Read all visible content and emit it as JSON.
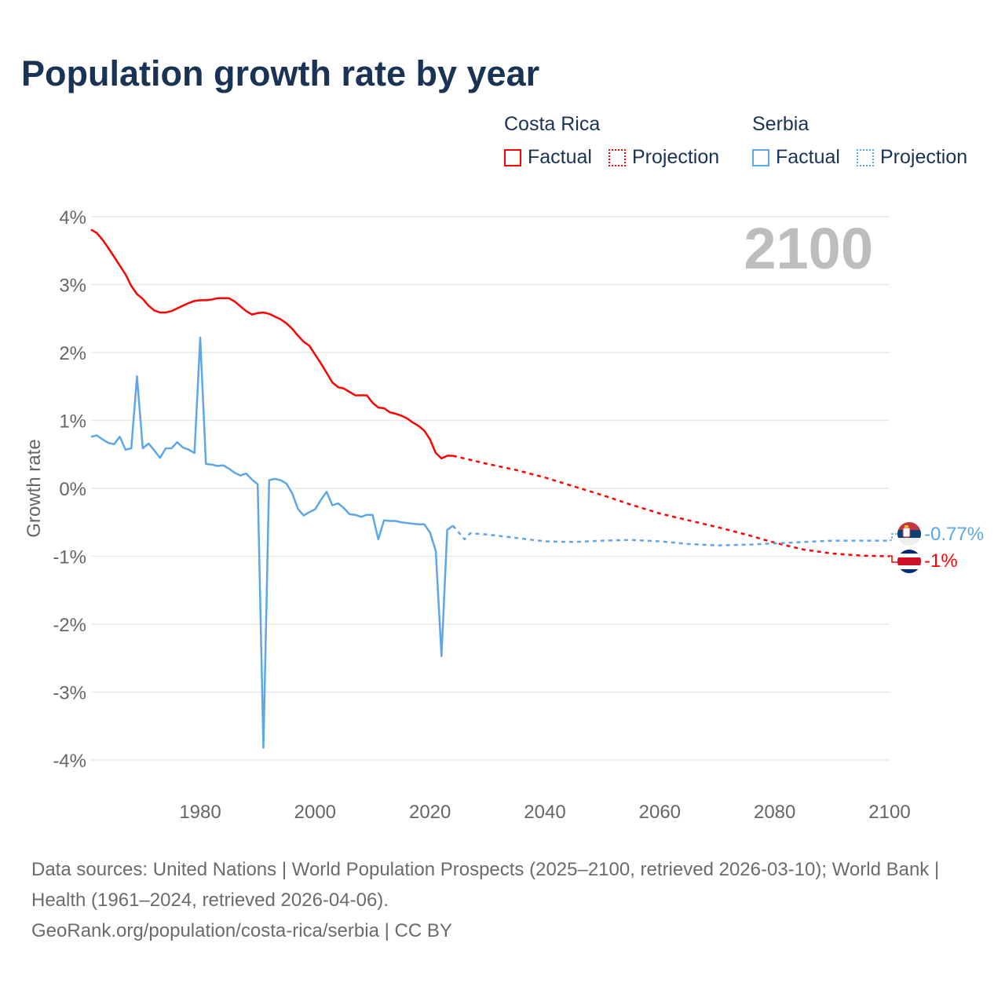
{
  "title": "Population growth rate by year",
  "legend": {
    "countries": [
      {
        "name": "Costa Rica",
        "color": "#ff0000",
        "factual_label": "Factual",
        "projection_label": "Projection"
      },
      {
        "name": "Serbia",
        "color": "#5ea6ea",
        "factual_label": "Factual",
        "projection_label": "Projection"
      }
    ]
  },
  "year_label": "2100",
  "end_labels": {
    "serbia": "-0.77%",
    "costa_rica": "-1%"
  },
  "footer": {
    "sources": "Data sources: United Nations | World Population Prospects (2025–2100, retrieved 2026-03-10); World Bank | Health (1961–2024, retrieved 2026-04-06).",
    "credit": "GeoRank.org/population/costa-rica/serbia | CC BY"
  },
  "chart_data": {
    "type": "line",
    "title": "Population growth rate by year",
    "xlabel": "",
    "ylabel": "Growth rate",
    "xlim": [
      1961,
      2100
    ],
    "ylim": [
      -4,
      4
    ],
    "grid": true,
    "legend_position": "top-right",
    "x_ticks": [
      1980,
      2000,
      2020,
      2040,
      2060,
      2080,
      2100
    ],
    "y_ticks": [
      {
        "value": 4,
        "label": "4%"
      },
      {
        "value": 3,
        "label": "3%"
      },
      {
        "value": 2,
        "label": "2%"
      },
      {
        "value": 1,
        "label": "1%"
      },
      {
        "value": 0,
        "label": "0%"
      },
      {
        "value": -1,
        "label": "-1%"
      },
      {
        "value": -2,
        "label": "-2%"
      },
      {
        "value": -3,
        "label": "-3%"
      },
      {
        "value": -4,
        "label": "-4%"
      }
    ],
    "series": [
      {
        "name": "Costa Rica",
        "kind": "Factual",
        "color": "#ff0000",
        "dashed": false,
        "start_year": 1961,
        "values": [
          3.81,
          3.76,
          3.66,
          3.54,
          3.41,
          3.28,
          3.15,
          2.98,
          2.86,
          2.79,
          2.69,
          2.62,
          2.59,
          2.59,
          2.61,
          2.65,
          2.69,
          2.73,
          2.76,
          2.77,
          2.77,
          2.78,
          2.8,
          2.8,
          2.8,
          2.75,
          2.68,
          2.61,
          2.56,
          2.58,
          2.59,
          2.57,
          2.53,
          2.49,
          2.43,
          2.35,
          2.25,
          2.16,
          2.1,
          1.97,
          1.84,
          1.7,
          1.56,
          1.49,
          1.47,
          1.42,
          1.37,
          1.37,
          1.37,
          1.26,
          1.19,
          1.18,
          1.12,
          1.1,
          1.07,
          1.03,
          0.97,
          0.92,
          0.85,
          0.72,
          0.52,
          0.44,
          0.48,
          0.48
        ]
      },
      {
        "name": "Costa Rica",
        "kind": "Projection",
        "color": "#ff0000",
        "dashed": true,
        "x": [
          2024,
          2025,
          2030,
          2035,
          2040,
          2045,
          2050,
          2055,
          2060,
          2065,
          2070,
          2075,
          2080,
          2085,
          2090,
          2095,
          2100
        ],
        "values": [
          0.48,
          0.46,
          0.36,
          0.27,
          0.16,
          0.03,
          -0.1,
          -0.24,
          -0.37,
          -0.47,
          -0.57,
          -0.68,
          -0.8,
          -0.9,
          -0.96,
          -0.99,
          -1.0
        ]
      },
      {
        "name": "Serbia",
        "kind": "Factual",
        "color": "#5ea6ea",
        "dashed": false,
        "start_year": 1961,
        "values": [
          0.76,
          0.78,
          0.72,
          0.67,
          0.65,
          0.76,
          0.57,
          0.59,
          1.65,
          0.59,
          0.66,
          0.56,
          0.45,
          0.59,
          0.59,
          0.68,
          0.6,
          0.57,
          0.52,
          2.22,
          0.36,
          0.35,
          0.33,
          0.34,
          0.29,
          0.23,
          0.19,
          0.22,
          0.13,
          0.06,
          -3.82,
          0.12,
          0.14,
          0.12,
          0.07,
          -0.07,
          -0.3,
          -0.4,
          -0.35,
          -0.31,
          -0.17,
          -0.05,
          -0.25,
          -0.22,
          -0.29,
          -0.38,
          -0.39,
          -0.42,
          -0.39,
          -0.39,
          -0.75,
          -0.47,
          -0.48,
          -0.48,
          -0.5,
          -0.51,
          -0.52,
          -0.53,
          -0.53,
          -0.65,
          -0.92,
          -2.47,
          -0.61,
          -0.55
        ]
      },
      {
        "name": "Serbia",
        "kind": "Projection",
        "color": "#5ea6ea",
        "dashed": true,
        "x": [
          2024,
          2025,
          2026,
          2027,
          2030,
          2035,
          2040,
          2045,
          2050,
          2055,
          2060,
          2065,
          2070,
          2075,
          2080,
          2085,
          2090,
          2095,
          2100
        ],
        "values": [
          -0.55,
          -0.65,
          -0.75,
          -0.66,
          -0.68,
          -0.73,
          -0.78,
          -0.79,
          -0.77,
          -0.76,
          -0.78,
          -0.82,
          -0.84,
          -0.83,
          -0.81,
          -0.79,
          -0.77,
          -0.77,
          -0.77
        ]
      }
    ]
  }
}
